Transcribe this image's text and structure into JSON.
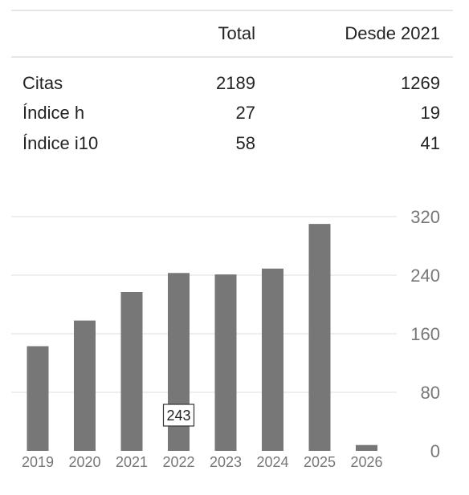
{
  "stats_table": {
    "header": {
      "total": "Total",
      "since": "Desde 2021"
    },
    "rows": [
      {
        "label": "Citas",
        "total": "2189",
        "since": "1269"
      },
      {
        "label": "Índice h",
        "total": "27",
        "since": "19"
      },
      {
        "label": "Índice i10",
        "total": "58",
        "since": "41"
      }
    ]
  },
  "chart_data": {
    "type": "bar",
    "categories": [
      "2019",
      "2020",
      "2021",
      "2022",
      "2023",
      "2024",
      "2025",
      "2026"
    ],
    "values": [
      143,
      178,
      217,
      243,
      241,
      249,
      310,
      8
    ],
    "yticks": [
      0,
      80,
      160,
      240,
      320
    ],
    "ylim": [
      0,
      320
    ],
    "y_axis_side": "right",
    "grid": true,
    "bar_color": "#777777",
    "tooltip": {
      "category": "2022",
      "text": "243"
    }
  }
}
